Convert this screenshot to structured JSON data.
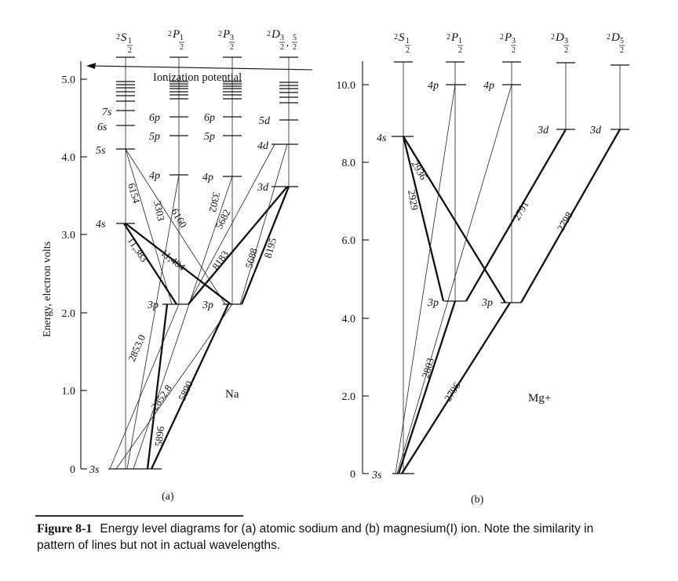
{
  "na": {
    "title": "Na",
    "sublabel": "(a)",
    "ylabel": "Energy, electron volts",
    "ticks": [
      "0",
      "1.0",
      "2.0",
      "3.0",
      "4.0",
      "5.0"
    ],
    "ionization": "Ionization potential",
    "columns": [
      {
        "sup": "2",
        "main": "S",
        "sub": "1",
        "den": "2"
      },
      {
        "sup": "2",
        "main": "P",
        "sub": "1",
        "den": "2"
      },
      {
        "sup": "2",
        "main": "P",
        "sub": "3",
        "den": "2"
      },
      {
        "sup": "2",
        "main": "D",
        "sub": "3",
        "den": "2",
        "extra": "5",
        "extra_den": "2"
      }
    ],
    "levels": {
      "s": [
        "3s",
        "4s",
        "5s",
        "6s",
        "7s"
      ],
      "p1": [
        "3p",
        "4p",
        "5p",
        "6p"
      ],
      "p3": [
        "3p",
        "4p",
        "5p",
        "6p"
      ],
      "d": [
        "3d",
        "4d",
        "5d"
      ]
    },
    "lines": [
      "6154",
      "3303",
      "6160",
      "3302",
      "11,383",
      "11,404",
      "5682",
      "8183",
      "5688",
      "8195",
      "2853.0",
      "2852.8",
      "5896",
      "5890"
    ]
  },
  "mg": {
    "title": "Mg+",
    "sublabel": "(b)",
    "ticks": [
      "0",
      "2.0",
      "4.0",
      "6.0",
      "8.0",
      "10.0"
    ],
    "columns": [
      {
        "sup": "2",
        "main": "S",
        "sub": "1",
        "den": "2"
      },
      {
        "sup": "2",
        "main": "P",
        "sub": "1",
        "den": "2"
      },
      {
        "sup": "2",
        "main": "P",
        "sub": "3",
        "den": "2"
      },
      {
        "sup": "2",
        "main": "D",
        "sub": "3",
        "den": "2"
      },
      {
        "sup": "2",
        "main": "D",
        "sub": "5",
        "den": "2"
      }
    ],
    "levels": {
      "s": [
        "3s",
        "4s"
      ],
      "p1": [
        "3p",
        "4p"
      ],
      "p3": [
        "3p",
        "4p"
      ],
      "d3": [
        "3d"
      ],
      "d5": [
        "3d"
      ]
    },
    "lines": [
      "2936",
      "2929",
      "2791",
      "2798",
      "2803",
      "2796"
    ]
  },
  "caption": {
    "label": "Figure 8-1",
    "text": "Energy level diagrams for (a) atomic sodium and (b) magnesium(I) ion. Note the similarity in pattern of lines but not in actual wavelengths."
  }
}
